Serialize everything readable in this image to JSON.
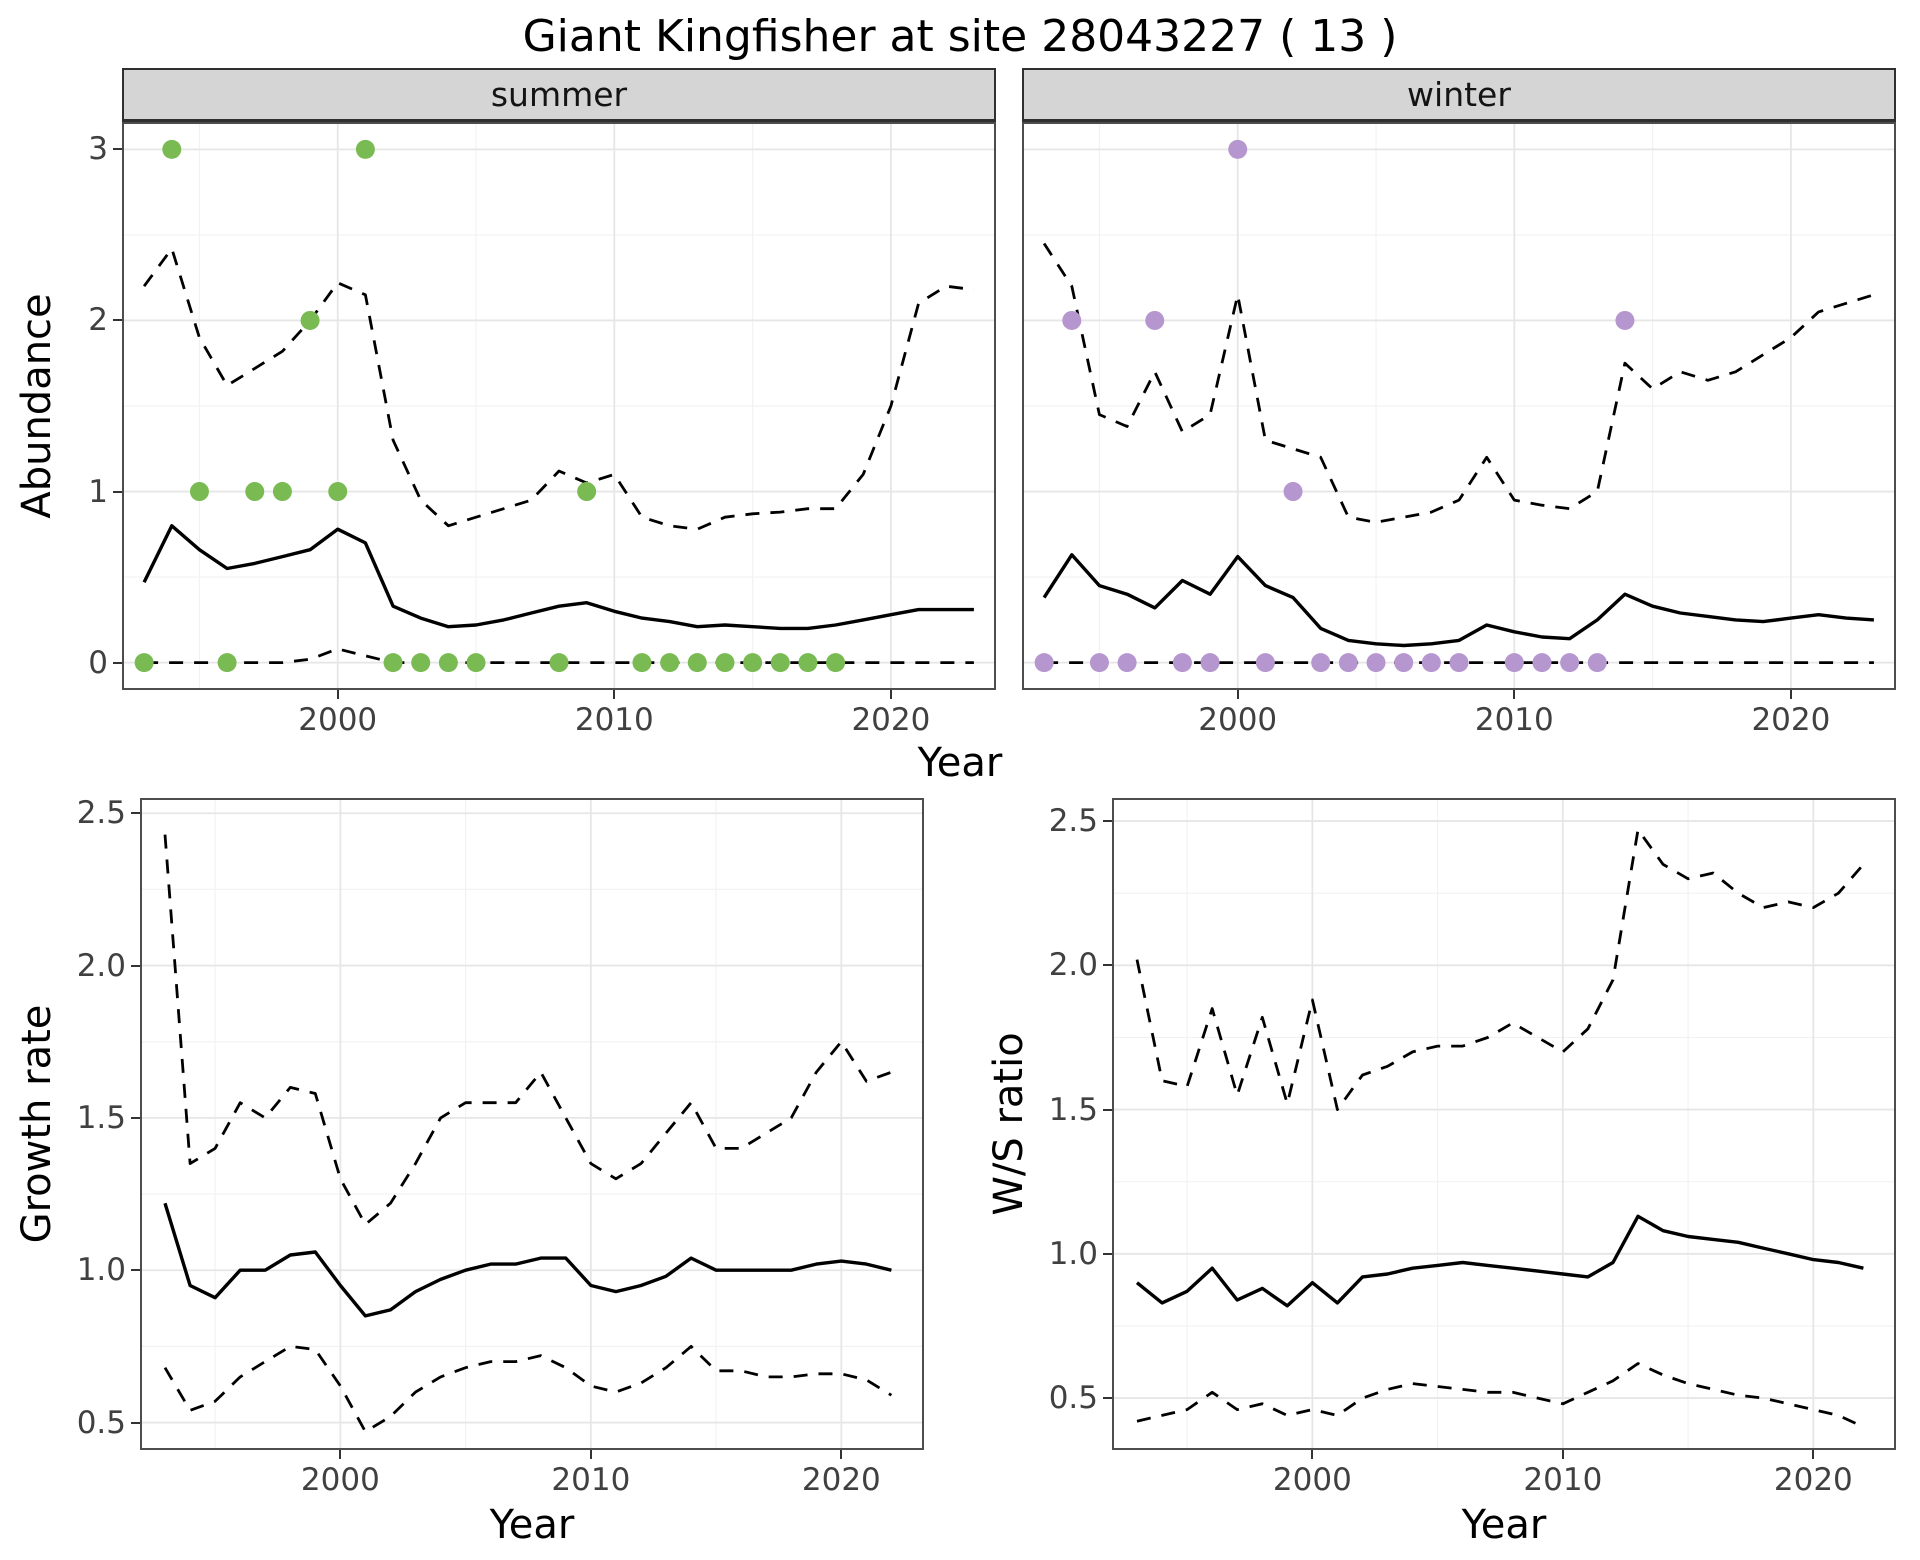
{
  "title": "Giant Kingfisher at site 28043227 ( 13 )",
  "facets": {
    "summer": "summer",
    "winter": "winter"
  },
  "axes": {
    "top_y": "Abundance",
    "top_x": "Year",
    "growth_y": "Growth rate",
    "growth_x": "Year",
    "ws_y": "W/S ratio",
    "ws_x": "Year"
  },
  "colors": {
    "summer_point": "#79BA53",
    "winter_point": "#B696CE",
    "line": "#000000",
    "grid_major": "#E6E6E6",
    "grid_minor": "#F2F2F2",
    "panel_border": "#4D4D4D",
    "strip_bg": "#D5D5D5",
    "tick_text": "#404040"
  },
  "chart_data": [
    {
      "id": "abundance-summer",
      "type": "line",
      "facet_label": "summer",
      "xlabel": "Year",
      "ylabel": "Abundance",
      "xlim": [
        1992.2,
        2023.8
      ],
      "ylim": [
        -0.16,
        3.16
      ],
      "xticks": [
        2000,
        2010,
        2020
      ],
      "xtick_labels": [
        "2000",
        "2010",
        "2020"
      ],
      "yticks": [
        0,
        1,
        2,
        3
      ],
      "ytick_labels": [
        "0",
        "1",
        "2",
        "3"
      ],
      "x": [
        1993,
        1994,
        1995,
        1996,
        1997,
        1998,
        1999,
        2000,
        2001,
        2002,
        2003,
        2004,
        2005,
        2006,
        2007,
        2008,
        2009,
        2010,
        2011,
        2012,
        2013,
        2014,
        2015,
        2016,
        2017,
        2018,
        2019,
        2020,
        2021,
        2022,
        2023
      ],
      "series": [
        {
          "name": "mean",
          "style": "solid",
          "values": [
            0.47,
            0.8,
            0.66,
            0.55,
            0.58,
            0.62,
            0.66,
            0.78,
            0.7,
            0.33,
            0.26,
            0.21,
            0.22,
            0.25,
            0.29,
            0.33,
            0.35,
            0.3,
            0.26,
            0.24,
            0.21,
            0.22,
            0.21,
            0.2,
            0.2,
            0.22,
            0.25,
            0.28,
            0.31,
            0.31,
            0.31
          ]
        },
        {
          "name": "upper-ci",
          "style": "dashed",
          "values": [
            2.2,
            2.42,
            1.9,
            1.62,
            1.72,
            1.82,
            2.0,
            2.22,
            2.15,
            1.3,
            0.95,
            0.8,
            0.85,
            0.9,
            0.95,
            1.12,
            1.05,
            1.1,
            0.85,
            0.8,
            0.78,
            0.85,
            0.87,
            0.88,
            0.9,
            0.9,
            1.1,
            1.5,
            2.1,
            2.2,
            2.18
          ]
        },
        {
          "name": "lower-ci",
          "style": "dashed",
          "values": [
            0,
            0,
            0,
            0,
            0,
            0,
            0.02,
            0.08,
            0.04,
            0,
            0,
            0,
            0,
            0,
            0,
            0,
            0,
            0,
            0,
            0,
            0,
            0,
            0,
            0,
            0,
            0,
            0,
            0,
            0,
            0,
            0
          ]
        }
      ],
      "points": {
        "label": "observed-counts-summer",
        "color": "#79BA53",
        "x": [
          1993,
          1994,
          1995,
          1996,
          1997,
          1998,
          1999,
          2000,
          2001,
          2002,
          2003,
          2004,
          2005,
          2008,
          2009,
          2011,
          2012,
          2013,
          2014,
          2015,
          2016,
          2017,
          2018
        ],
        "y": [
          0,
          3,
          1,
          0,
          1,
          1,
          2,
          1,
          3,
          0,
          0,
          0,
          0,
          0,
          1,
          0,
          0,
          0,
          0,
          0,
          0,
          0,
          0
        ]
      }
    },
    {
      "id": "abundance-winter",
      "type": "line",
      "facet_label": "winter",
      "xlabel": "Year",
      "ylabel": "Abundance",
      "xlim": [
        1992.2,
        2023.8
      ],
      "ylim": [
        -0.16,
        3.16
      ],
      "xticks": [
        2000,
        2010,
        2020
      ],
      "xtick_labels": [
        "2000",
        "2010",
        "2020"
      ],
      "yticks": [
        0,
        1,
        2,
        3
      ],
      "ytick_labels": [
        "0",
        "1",
        "2",
        "3"
      ],
      "x": [
        1993,
        1994,
        1995,
        1996,
        1997,
        1998,
        1999,
        2000,
        2001,
        2002,
        2003,
        2004,
        2005,
        2006,
        2007,
        2008,
        2009,
        2010,
        2011,
        2012,
        2013,
        2014,
        2015,
        2016,
        2017,
        2018,
        2019,
        2020,
        2021,
        2022,
        2023
      ],
      "series": [
        {
          "name": "mean",
          "style": "solid",
          "values": [
            0.38,
            0.63,
            0.45,
            0.4,
            0.32,
            0.48,
            0.4,
            0.62,
            0.45,
            0.38,
            0.2,
            0.13,
            0.11,
            0.1,
            0.11,
            0.13,
            0.22,
            0.18,
            0.15,
            0.14,
            0.25,
            0.4,
            0.33,
            0.29,
            0.27,
            0.25,
            0.24,
            0.26,
            0.28,
            0.26,
            0.25
          ]
        },
        {
          "name": "upper-ci",
          "style": "dashed",
          "values": [
            2.45,
            2.2,
            1.45,
            1.38,
            1.7,
            1.35,
            1.45,
            2.15,
            1.3,
            1.25,
            1.2,
            0.85,
            0.82,
            0.85,
            0.88,
            0.95,
            1.2,
            0.95,
            0.92,
            0.9,
            1.0,
            1.75,
            1.6,
            1.7,
            1.65,
            1.7,
            1.8,
            1.9,
            2.05,
            2.1,
            2.15
          ]
        },
        {
          "name": "lower-ci",
          "style": "dashed",
          "values": [
            0,
            0,
            0,
            0,
            0,
            0,
            0,
            0,
            0,
            0,
            0,
            0,
            0,
            0,
            0,
            0,
            0,
            0,
            0,
            0,
            0,
            0,
            0,
            0,
            0,
            0,
            0,
            0,
            0,
            0,
            0
          ]
        }
      ],
      "points": {
        "label": "observed-counts-winter",
        "color": "#B696CE",
        "x": [
          1993,
          1994,
          1995,
          1996,
          1997,
          1998,
          1999,
          2000,
          2001,
          2002,
          2003,
          2004,
          2005,
          2006,
          2007,
          2008,
          2010,
          2011,
          2012,
          2013,
          2014
        ],
        "y": [
          0,
          2,
          0,
          0,
          2,
          0,
          0,
          3,
          0,
          1,
          0,
          0,
          0,
          0,
          0,
          0,
          0,
          0,
          0,
          0,
          2
        ]
      }
    },
    {
      "id": "growth-rate",
      "type": "line",
      "xlabel": "Year",
      "ylabel": "Growth rate",
      "xlim": [
        1992.0,
        2023.3
      ],
      "ylim": [
        0.41,
        2.55
      ],
      "xticks": [
        2000,
        2010,
        2020
      ],
      "xtick_labels": [
        "2000",
        "2010",
        "2020"
      ],
      "yticks": [
        0.5,
        1.0,
        1.5,
        2.0,
        2.5
      ],
      "ytick_labels": [
        "0.5",
        "1.0",
        "1.5",
        "2.0",
        "2.5"
      ],
      "x": [
        1993,
        1994,
        1995,
        1996,
        1997,
        1998,
        1999,
        2000,
        2001,
        2002,
        2003,
        2004,
        2005,
        2006,
        2007,
        2008,
        2009,
        2010,
        2011,
        2012,
        2013,
        2014,
        2015,
        2016,
        2017,
        2018,
        2019,
        2020,
        2021,
        2022
      ],
      "series": [
        {
          "name": "mean",
          "style": "solid",
          "values": [
            1.22,
            0.95,
            0.91,
            1.0,
            1.0,
            1.05,
            1.06,
            0.95,
            0.85,
            0.87,
            0.93,
            0.97,
            1.0,
            1.02,
            1.02,
            1.04,
            1.04,
            0.95,
            0.93,
            0.95,
            0.98,
            1.04,
            1.0,
            1.0,
            1.0,
            1.0,
            1.02,
            1.03,
            1.02,
            1.0
          ]
        },
        {
          "name": "upper-ci",
          "style": "dashed",
          "values": [
            2.43,
            1.35,
            1.4,
            1.55,
            1.5,
            1.6,
            1.58,
            1.3,
            1.15,
            1.22,
            1.35,
            1.5,
            1.55,
            1.55,
            1.55,
            1.65,
            1.5,
            1.35,
            1.3,
            1.35,
            1.45,
            1.55,
            1.4,
            1.4,
            1.45,
            1.5,
            1.65,
            1.75,
            1.62,
            1.65
          ]
        },
        {
          "name": "lower-ci",
          "style": "dashed",
          "values": [
            0.68,
            0.54,
            0.57,
            0.65,
            0.7,
            0.75,
            0.74,
            0.62,
            0.47,
            0.52,
            0.6,
            0.65,
            0.68,
            0.7,
            0.7,
            0.72,
            0.68,
            0.62,
            0.6,
            0.63,
            0.68,
            0.75,
            0.67,
            0.67,
            0.65,
            0.65,
            0.66,
            0.66,
            0.64,
            0.59
          ]
        }
      ]
    },
    {
      "id": "ws-ratio",
      "type": "line",
      "xlabel": "Year",
      "ylabel": "W/S ratio",
      "xlim": [
        1992.0,
        2023.3
      ],
      "ylim": [
        0.32,
        2.58
      ],
      "xticks": [
        2000,
        2010,
        2020
      ],
      "xtick_labels": [
        "2000",
        "2010",
        "2020"
      ],
      "yticks": [
        0.5,
        1.0,
        1.5,
        2.0,
        2.5
      ],
      "ytick_labels": [
        "0.5",
        "1.0",
        "1.5",
        "2.0",
        "2.5"
      ],
      "x": [
        1993,
        1994,
        1995,
        1996,
        1997,
        1998,
        1999,
        2000,
        2001,
        2002,
        2003,
        2004,
        2005,
        2006,
        2007,
        2008,
        2009,
        2010,
        2011,
        2012,
        2013,
        2014,
        2015,
        2016,
        2017,
        2018,
        2019,
        2020,
        2021,
        2022
      ],
      "series": [
        {
          "name": "mean",
          "style": "solid",
          "values": [
            0.9,
            0.83,
            0.87,
            0.95,
            0.84,
            0.88,
            0.82,
            0.9,
            0.83,
            0.92,
            0.93,
            0.95,
            0.96,
            0.97,
            0.96,
            0.95,
            0.94,
            0.93,
            0.92,
            0.97,
            1.13,
            1.08,
            1.06,
            1.05,
            1.04,
            1.02,
            1.0,
            0.98,
            0.97,
            0.95
          ]
        },
        {
          "name": "upper-ci",
          "style": "dashed",
          "values": [
            2.02,
            1.6,
            1.58,
            1.85,
            1.55,
            1.82,
            1.52,
            1.88,
            1.5,
            1.62,
            1.65,
            1.7,
            1.72,
            1.72,
            1.75,
            1.8,
            1.75,
            1.7,
            1.78,
            1.95,
            2.47,
            2.35,
            2.3,
            2.32,
            2.25,
            2.2,
            2.22,
            2.2,
            2.25,
            2.35
          ]
        },
        {
          "name": "lower-ci",
          "style": "dashed",
          "values": [
            0.42,
            0.44,
            0.46,
            0.52,
            0.46,
            0.48,
            0.44,
            0.46,
            0.44,
            0.5,
            0.53,
            0.55,
            0.54,
            0.53,
            0.52,
            0.52,
            0.5,
            0.48,
            0.52,
            0.56,
            0.62,
            0.58,
            0.55,
            0.53,
            0.51,
            0.5,
            0.48,
            0.46,
            0.44,
            0.4
          ]
        }
      ]
    }
  ]
}
